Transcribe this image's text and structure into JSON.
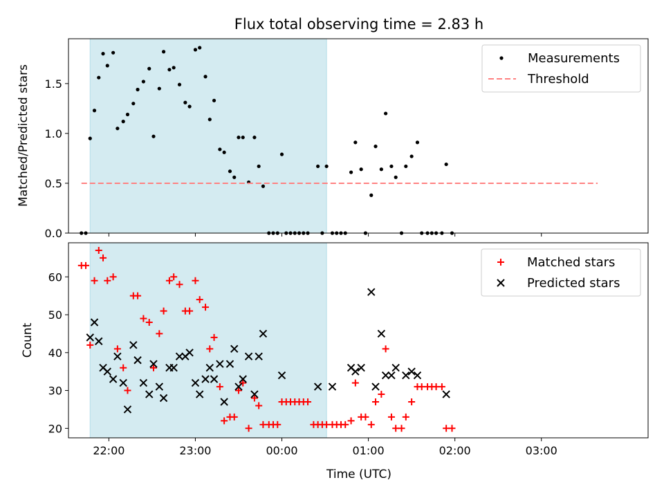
{
  "chart_data": [
    {
      "type": "scatter",
      "title": "Flux total observing time = 2.83 h",
      "xlabel": "",
      "ylabel": "Matched/Predicted stars",
      "x_is_time": true,
      "xlim": [
        "21:32",
        "04:14"
      ],
      "ylim": [
        0,
        1.95
      ],
      "yticks": [
        "0.0",
        "0.5",
        "1.0",
        "1.5"
      ],
      "ytick_values": [
        0,
        0.5,
        1.0,
        1.5
      ],
      "highlight_span": [
        "21:47",
        "00:31"
      ],
      "highlight_color": "#d4ebf1",
      "legend_position": "top-right",
      "series": [
        {
          "name": "Measurements",
          "kind": "dot",
          "color": "#000000",
          "points": [
            [
              "21:41",
              0
            ],
            [
              "21:44",
              0
            ],
            [
              "21:47",
              0.95
            ],
            [
              "21:50",
              1.23
            ],
            [
              "21:53",
              1.56
            ],
            [
              "21:56",
              1.8
            ],
            [
              "21:59",
              1.68
            ],
            [
              "22:03",
              1.81
            ],
            [
              "22:06",
              1.05
            ],
            [
              "22:10",
              1.12
            ],
            [
              "22:13",
              1.19
            ],
            [
              "22:17",
              1.3
            ],
            [
              "22:20",
              1.44
            ],
            [
              "22:24",
              1.52
            ],
            [
              "22:28",
              1.65
            ],
            [
              "22:31",
              0.97
            ],
            [
              "22:35",
              1.45
            ],
            [
              "22:38",
              1.82
            ],
            [
              "22:42",
              1.64
            ],
            [
              "22:45",
              1.66
            ],
            [
              "22:49",
              1.49
            ],
            [
              "22:53",
              1.31
            ],
            [
              "22:56",
              1.27
            ],
            [
              "23:00",
              1.84
            ],
            [
              "23:03",
              1.86
            ],
            [
              "23:07",
              1.57
            ],
            [
              "23:10",
              1.14
            ],
            [
              "23:13",
              1.33
            ],
            [
              "23:17",
              0.84
            ],
            [
              "23:20",
              0.81
            ],
            [
              "23:24",
              0.62
            ],
            [
              "23:27",
              0.56
            ],
            [
              "23:30",
              0.96
            ],
            [
              "23:33",
              0.96
            ],
            [
              "23:37",
              0.51
            ],
            [
              "23:41",
              0.96
            ],
            [
              "23:44",
              0.67
            ],
            [
              "23:47",
              0.47
            ],
            [
              "23:51",
              0
            ],
            [
              "23:54",
              0
            ],
            [
              "23:57",
              0
            ],
            [
              "00:00",
              0.79
            ],
            [
              "00:03",
              0
            ],
            [
              "00:06",
              0
            ],
            [
              "00:09",
              0
            ],
            [
              "00:12",
              0
            ],
            [
              "00:15",
              0
            ],
            [
              "00:18",
              0
            ],
            [
              "00:25",
              0.67
            ],
            [
              "00:28",
              0
            ],
            [
              "00:31",
              0.67
            ],
            [
              "00:35",
              0
            ],
            [
              "00:38",
              0
            ],
            [
              "00:41",
              0
            ],
            [
              "00:44",
              0
            ],
            [
              "00:48",
              0.61
            ],
            [
              "00:51",
              0.91
            ],
            [
              "00:55",
              0.64
            ],
            [
              "00:58",
              0
            ],
            [
              "01:02",
              0.38
            ],
            [
              "01:05",
              0.87
            ],
            [
              "01:09",
              0.64
            ],
            [
              "01:12",
              1.2
            ],
            [
              "01:16",
              0.67
            ],
            [
              "01:19",
              0.56
            ],
            [
              "01:23",
              0
            ],
            [
              "01:26",
              0.67
            ],
            [
              "01:30",
              0.77
            ],
            [
              "01:34",
              0.91
            ],
            [
              "01:37",
              0
            ],
            [
              "01:41",
              0
            ],
            [
              "01:44",
              0
            ],
            [
              "01:47",
              0
            ],
            [
              "01:51",
              0
            ],
            [
              "01:54",
              0.69
            ],
            [
              "01:58",
              0
            ]
          ]
        },
        {
          "name": "Threshold",
          "kind": "dashed-line",
          "color": "#ff8080",
          "points": [
            [
              "21:41",
              0.5
            ],
            [
              "03:39",
              0.5
            ]
          ]
        }
      ]
    },
    {
      "type": "scatter",
      "title": "",
      "xlabel": "Time (UTC)",
      "ylabel": "Count",
      "x_is_time": true,
      "xlim": [
        "21:32",
        "04:14"
      ],
      "ylim": [
        17.5,
        69
      ],
      "yticks": [
        "20",
        "30",
        "40",
        "50",
        "60"
      ],
      "ytick_values": [
        20,
        30,
        40,
        50,
        60
      ],
      "xticks": [
        "22:00",
        "23:00",
        "00:00",
        "01:00",
        "02:00",
        "03:00"
      ],
      "xtick_values": [
        "22:00",
        "23:00",
        "24:00",
        "25:00",
        "26:00",
        "27:00"
      ],
      "highlight_span": [
        "21:47",
        "00:31"
      ],
      "highlight_color": "#d4ebf1",
      "legend_position": "top-right",
      "series": [
        {
          "name": "Matched stars",
          "kind": "plus",
          "color": "#ff0000",
          "points": [
            [
              "21:41",
              63
            ],
            [
              "21:44",
              63
            ],
            [
              "21:47",
              42
            ],
            [
              "21:50",
              59
            ],
            [
              "21:53",
              67
            ],
            [
              "21:56",
              65
            ],
            [
              "21:59",
              59
            ],
            [
              "22:03",
              60
            ],
            [
              "22:06",
              41
            ],
            [
              "22:10",
              36
            ],
            [
              "22:13",
              30
            ],
            [
              "22:17",
              55
            ],
            [
              "22:20",
              55
            ],
            [
              "22:24",
              49
            ],
            [
              "22:28",
              48
            ],
            [
              "22:31",
              36
            ],
            [
              "22:35",
              45
            ],
            [
              "22:38",
              51
            ],
            [
              "22:42",
              59
            ],
            [
              "22:45",
              60
            ],
            [
              "22:49",
              58
            ],
            [
              "22:53",
              51
            ],
            [
              "22:56",
              51
            ],
            [
              "23:00",
              59
            ],
            [
              "23:03",
              54
            ],
            [
              "23:07",
              52
            ],
            [
              "23:10",
              41
            ],
            [
              "23:13",
              44
            ],
            [
              "23:17",
              31
            ],
            [
              "23:20",
              22
            ],
            [
              "23:24",
              23
            ],
            [
              "23:27",
              23
            ],
            [
              "23:30",
              30
            ],
            [
              "23:33",
              32
            ],
            [
              "23:37",
              20
            ],
            [
              "23:41",
              28
            ],
            [
              "23:44",
              26
            ],
            [
              "23:47",
              21
            ],
            [
              "23:51",
              21
            ],
            [
              "23:54",
              21
            ],
            [
              "23:57",
              21
            ],
            [
              "00:00",
              27
            ],
            [
              "00:03",
              27
            ],
            [
              "00:06",
              27
            ],
            [
              "00:09",
              27
            ],
            [
              "00:12",
              27
            ],
            [
              "00:15",
              27
            ],
            [
              "00:18",
              27
            ],
            [
              "00:22",
              21
            ],
            [
              "00:25",
              21
            ],
            [
              "00:28",
              21
            ],
            [
              "00:31",
              21
            ],
            [
              "00:35",
              21
            ],
            [
              "00:38",
              21
            ],
            [
              "00:41",
              21
            ],
            [
              "00:44",
              21
            ],
            [
              "00:48",
              22
            ],
            [
              "00:51",
              32
            ],
            [
              "00:55",
              23
            ],
            [
              "00:58",
              23
            ],
            [
              "01:02",
              21
            ],
            [
              "01:05",
              27
            ],
            [
              "01:09",
              29
            ],
            [
              "01:12",
              41
            ],
            [
              "01:16",
              23
            ],
            [
              "01:19",
              20
            ],
            [
              "01:23",
              20
            ],
            [
              "01:26",
              23
            ],
            [
              "01:30",
              27
            ],
            [
              "01:34",
              31
            ],
            [
              "01:37",
              31
            ],
            [
              "01:41",
              31
            ],
            [
              "01:44",
              31
            ],
            [
              "01:47",
              31
            ],
            [
              "01:51",
              31
            ],
            [
              "01:54",
              20
            ],
            [
              "01:58",
              20
            ]
          ]
        },
        {
          "name": "Predicted stars",
          "kind": "x",
          "color": "#000000",
          "points": [
            [
              "21:47",
              44
            ],
            [
              "21:50",
              48
            ],
            [
              "21:53",
              43
            ],
            [
              "21:56",
              36
            ],
            [
              "21:59",
              35
            ],
            [
              "22:03",
              33
            ],
            [
              "22:06",
              39
            ],
            [
              "22:10",
              32
            ],
            [
              "22:13",
              25
            ],
            [
              "22:17",
              42
            ],
            [
              "22:20",
              38
            ],
            [
              "22:24",
              32
            ],
            [
              "22:28",
              29
            ],
            [
              "22:31",
              37
            ],
            [
              "22:35",
              31
            ],
            [
              "22:38",
              28
            ],
            [
              "22:42",
              36
            ],
            [
              "22:45",
              36
            ],
            [
              "22:49",
              39
            ],
            [
              "22:53",
              39
            ],
            [
              "22:56",
              40
            ],
            [
              "23:00",
              32
            ],
            [
              "23:03",
              29
            ],
            [
              "23:07",
              33
            ],
            [
              "23:10",
              36
            ],
            [
              "23:13",
              33
            ],
            [
              "23:17",
              37
            ],
            [
              "23:20",
              27
            ],
            [
              "23:24",
              37
            ],
            [
              "23:27",
              41
            ],
            [
              "23:30",
              31
            ],
            [
              "23:33",
              33
            ],
            [
              "23:37",
              39
            ],
            [
              "23:41",
              29
            ],
            [
              "23:44",
              39
            ],
            [
              "23:47",
              45
            ],
            [
              "00:00",
              34
            ],
            [
              "00:25",
              31
            ],
            [
              "00:35",
              31
            ],
            [
              "00:48",
              36
            ],
            [
              "00:51",
              35
            ],
            [
              "00:55",
              36
            ],
            [
              "01:02",
              56
            ],
            [
              "01:05",
              31
            ],
            [
              "01:09",
              45
            ],
            [
              "01:12",
              34
            ],
            [
              "01:16",
              34
            ],
            [
              "01:19",
              36
            ],
            [
              "01:26",
              34
            ],
            [
              "01:30",
              35
            ],
            [
              "01:34",
              34
            ],
            [
              "01:54",
              29
            ]
          ]
        }
      ]
    }
  ]
}
